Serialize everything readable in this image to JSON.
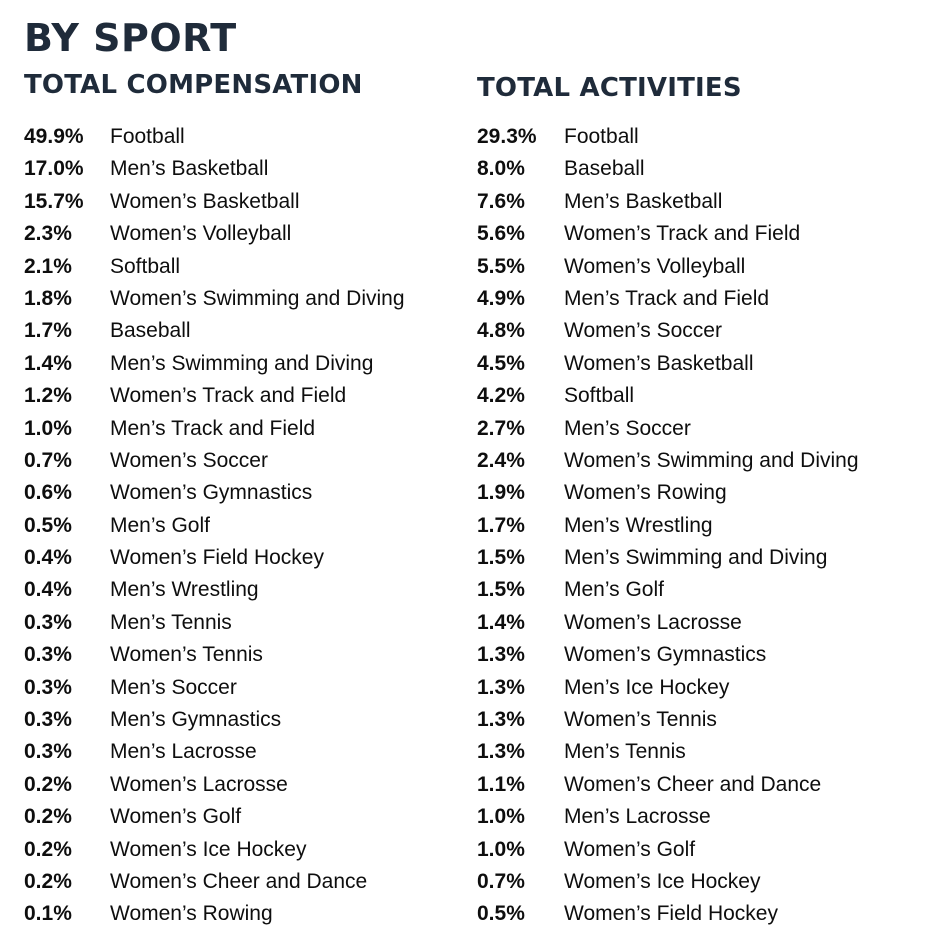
{
  "title": "BY SPORT",
  "compensation": {
    "heading": "TOTAL COMPENSATION",
    "rows": [
      {
        "pct": "49.9%",
        "sport": "Football"
      },
      {
        "pct": "17.0%",
        "sport": "Men’s Basketball"
      },
      {
        "pct": "15.7%",
        "sport": "Women’s Basketball"
      },
      {
        "pct": "2.3%",
        "sport": "Women’s Volleyball"
      },
      {
        "pct": "2.1%",
        "sport": "Softball"
      },
      {
        "pct": "1.8%",
        "sport": "Women’s Swimming and Diving"
      },
      {
        "pct": "1.7%",
        "sport": "Baseball"
      },
      {
        "pct": "1.4%",
        "sport": "Men’s Swimming and Diving"
      },
      {
        "pct": "1.2%",
        "sport": "Women’s Track and Field"
      },
      {
        "pct": "1.0%",
        "sport": "Men’s Track and Field"
      },
      {
        "pct": "0.7%",
        "sport": "Women’s Soccer"
      },
      {
        "pct": "0.6%",
        "sport": "Women’s Gymnastics"
      },
      {
        "pct": "0.5%",
        "sport": "Men’s Golf"
      },
      {
        "pct": "0.4%",
        "sport": "Women’s Field Hockey"
      },
      {
        "pct": "0.4%",
        "sport": "Men’s Wrestling"
      },
      {
        "pct": "0.3%",
        "sport": "Men’s Tennis"
      },
      {
        "pct": "0.3%",
        "sport": "Women’s Tennis"
      },
      {
        "pct": "0.3%",
        "sport": "Men’s Soccer"
      },
      {
        "pct": "0.3%",
        "sport": "Men’s Gymnastics"
      },
      {
        "pct": "0.3%",
        "sport": "Men’s Lacrosse"
      },
      {
        "pct": "0.2%",
        "sport": "Women’s Lacrosse"
      },
      {
        "pct": "0.2%",
        "sport": "Women’s Golf"
      },
      {
        "pct": "0.2%",
        "sport": "Women’s Ice Hockey"
      },
      {
        "pct": "0.2%",
        "sport": "Women’s Cheer and Dance"
      },
      {
        "pct": "0.1%",
        "sport": "Women’s Rowing"
      }
    ]
  },
  "activities": {
    "heading": "TOTAL ACTIVITIES",
    "rows": [
      {
        "pct": "29.3%",
        "sport": "Football"
      },
      {
        "pct": "8.0%",
        "sport": "Baseball"
      },
      {
        "pct": "7.6%",
        "sport": "Men’s Basketball"
      },
      {
        "pct": "5.6%",
        "sport": "Women’s Track and Field"
      },
      {
        "pct": "5.5%",
        "sport": "Women’s Volleyball"
      },
      {
        "pct": "4.9%",
        "sport": "Men’s Track and Field"
      },
      {
        "pct": "4.8%",
        "sport": "Women’s Soccer"
      },
      {
        "pct": "4.5%",
        "sport": "Women’s Basketball"
      },
      {
        "pct": "4.2%",
        "sport": "Softball"
      },
      {
        "pct": "2.7%",
        "sport": "Men’s Soccer"
      },
      {
        "pct": "2.4%",
        "sport": "Women’s Swimming and Diving"
      },
      {
        "pct": "1.9%",
        "sport": "Women’s Rowing"
      },
      {
        "pct": "1.7%",
        "sport": "Men’s Wrestling"
      },
      {
        "pct": "1.5%",
        "sport": "Men’s Swimming and Diving"
      },
      {
        "pct": "1.5%",
        "sport": "Men’s Golf"
      },
      {
        "pct": "1.4%",
        "sport": "Women’s Lacrosse"
      },
      {
        "pct": "1.3%",
        "sport": "Women’s Gymnastics"
      },
      {
        "pct": "1.3%",
        "sport": "Men’s Ice Hockey"
      },
      {
        "pct": "1.3%",
        "sport": "Women’s Tennis"
      },
      {
        "pct": "1.3%",
        "sport": "Men’s Tennis"
      },
      {
        "pct": "1.1%",
        "sport": "Women’s Cheer and Dance"
      },
      {
        "pct": "1.0%",
        "sport": "Men’s Lacrosse"
      },
      {
        "pct": "1.0%",
        "sport": "Women’s Golf"
      },
      {
        "pct": "0.7%",
        "sport": "Women’s Ice Hockey"
      },
      {
        "pct": "0.5%",
        "sport": "Women’s Field Hockey"
      }
    ]
  }
}
